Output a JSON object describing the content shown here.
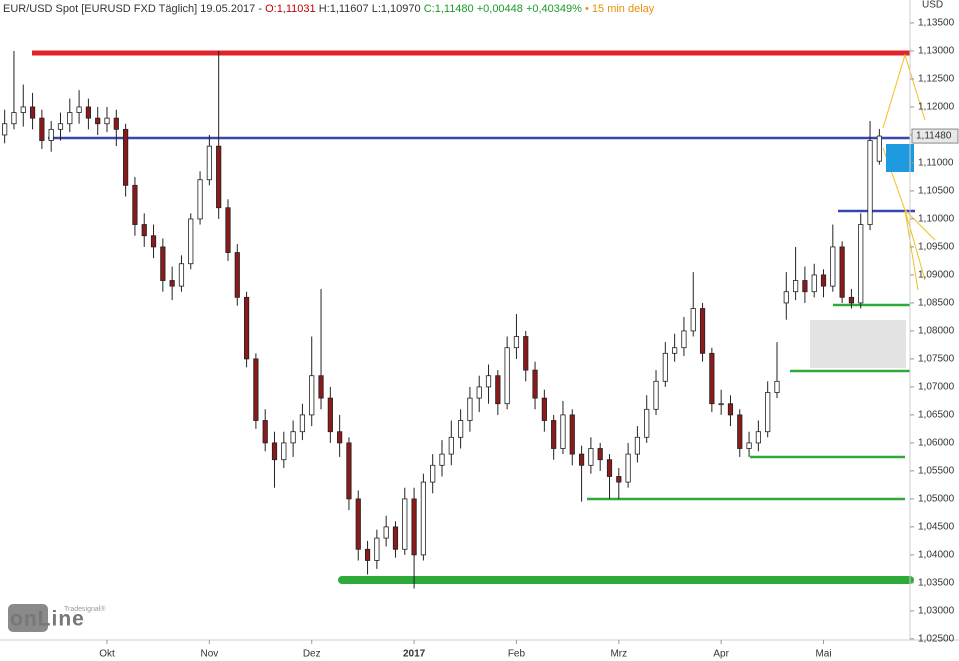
{
  "chart_data": {
    "type": "candlestick",
    "title": "EUR/USD Spot [EURUSD FXD Täglich] 19.05.2017 -",
    "open_text": "O:1,11031",
    "high_low_text": "H:1,11607 L:1,10970",
    "change_text": "C:1,11480 +0,00448 +0,40349%",
    "delay_text": "• 15 min delay",
    "y_axis_label": "USD",
    "last_price": {
      "value": 1.1148,
      "label": "1,11480"
    },
    "watermark": {
      "brand": "Tradesignal®",
      "name": "onLine"
    },
    "up_color": "#ffffff",
    "down_color": "#8b1a1a",
    "ylim": [
      1.0248,
      1.1391
    ],
    "yticks": [
      {
        "value": 1.025,
        "label": "1,02500"
      },
      {
        "value": 1.03,
        "label": "1,03000"
      },
      {
        "value": 1.035,
        "label": "1,03500"
      },
      {
        "value": 1.04,
        "label": "1,04000"
      },
      {
        "value": 1.045,
        "label": "1,04500"
      },
      {
        "value": 1.05,
        "label": "1,05000"
      },
      {
        "value": 1.055,
        "label": "1,05500"
      },
      {
        "value": 1.06,
        "label": "1,06000"
      },
      {
        "value": 1.065,
        "label": "1,06500"
      },
      {
        "value": 1.07,
        "label": "1,07000"
      },
      {
        "value": 1.075,
        "label": "1,07500"
      },
      {
        "value": 1.08,
        "label": "1,08000"
      },
      {
        "value": 1.085,
        "label": "1,08500"
      },
      {
        "value": 1.09,
        "label": "1,09000"
      },
      {
        "value": 1.095,
        "label": "1,09500"
      },
      {
        "value": 1.1,
        "label": "1,10000"
      },
      {
        "value": 1.105,
        "label": "1,10500"
      },
      {
        "value": 1.11,
        "label": "1,11000"
      },
      {
        "value": 1.115,
        "label": "1,11500"
      },
      {
        "value": 1.12,
        "label": "1,12000"
      },
      {
        "value": 1.125,
        "label": "1,12500"
      },
      {
        "value": 1.13,
        "label": "1,13000"
      },
      {
        "value": 1.135,
        "label": "1,13500"
      }
    ],
    "categories": [
      null,
      null,
      null,
      null,
      null,
      null,
      null,
      null,
      null,
      null,
      null,
      "Okt",
      null,
      null,
      null,
      null,
      null,
      null,
      null,
      null,
      null,
      null,
      "Nov",
      null,
      null,
      null,
      null,
      null,
      null,
      null,
      null,
      null,
      null,
      "Dez",
      null,
      null,
      null,
      null,
      null,
      null,
      null,
      null,
      null,
      null,
      "2017",
      null,
      null,
      null,
      null,
      null,
      null,
      null,
      null,
      null,
      null,
      "Feb",
      null,
      null,
      null,
      null,
      null,
      null,
      null,
      null,
      null,
      null,
      "Mrz",
      null,
      null,
      null,
      null,
      null,
      null,
      null,
      null,
      null,
      null,
      "Apr",
      null,
      null,
      null,
      null,
      null,
      null,
      null,
      null,
      null,
      null,
      "Mai",
      null,
      null,
      null,
      null,
      null,
      null
    ],
    "ohlc": [
      [
        1.115,
        1.1195,
        1.1135,
        1.117
      ],
      [
        1.117,
        1.13,
        1.116,
        1.119
      ],
      [
        1.119,
        1.124,
        1.1165,
        1.12
      ],
      [
        1.12,
        1.1225,
        1.116,
        1.118
      ],
      [
        1.118,
        1.1195,
        1.1125,
        1.114
      ],
      [
        1.114,
        1.1175,
        1.112,
        1.116
      ],
      [
        1.116,
        1.119,
        1.114,
        1.117
      ],
      [
        1.117,
        1.1215,
        1.1155,
        1.119
      ],
      [
        1.119,
        1.123,
        1.117,
        1.12
      ],
      [
        1.12,
        1.1215,
        1.116,
        1.118
      ],
      [
        1.118,
        1.12,
        1.115,
        1.117
      ],
      [
        1.117,
        1.12,
        1.1155,
        1.118
      ],
      [
        1.118,
        1.1195,
        1.113,
        1.116
      ],
      [
        1.116,
        1.117,
        1.104,
        1.106
      ],
      [
        1.106,
        1.1075,
        1.097,
        1.099
      ],
      [
        1.099,
        1.101,
        1.095,
        1.097
      ],
      [
        1.097,
        1.099,
        1.093,
        1.095
      ],
      [
        1.095,
        1.0965,
        1.087,
        1.089
      ],
      [
        1.089,
        1.0915,
        1.0855,
        1.088
      ],
      [
        1.088,
        1.0935,
        1.087,
        1.092
      ],
      [
        1.092,
        1.101,
        1.091,
        1.1
      ],
      [
        1.1,
        1.1085,
        1.099,
        1.107
      ],
      [
        1.107,
        1.115,
        1.106,
        1.113
      ],
      [
        1.113,
        1.13,
        1.1,
        1.102
      ],
      [
        1.102,
        1.1035,
        1.0925,
        1.094
      ],
      [
        1.094,
        1.0955,
        1.0845,
        1.086
      ],
      [
        1.086,
        1.087,
        1.0735,
        1.075
      ],
      [
        1.075,
        1.076,
        1.0625,
        1.064
      ],
      [
        1.064,
        1.066,
        1.0585,
        1.06
      ],
      [
        1.06,
        1.062,
        1.052,
        1.057
      ],
      [
        1.057,
        1.062,
        1.0555,
        1.06
      ],
      [
        1.06,
        1.064,
        1.0575,
        1.062
      ],
      [
        1.062,
        1.067,
        1.0605,
        1.065
      ],
      [
        1.065,
        1.079,
        1.063,
        1.072
      ],
      [
        1.072,
        1.0875,
        1.066,
        1.068
      ],
      [
        1.068,
        1.07,
        1.06,
        1.062
      ],
      [
        1.062,
        1.065,
        1.0575,
        1.06
      ],
      [
        1.06,
        1.061,
        1.048,
        1.05
      ],
      [
        1.05,
        1.0515,
        1.039,
        1.041
      ],
      [
        1.041,
        1.0425,
        1.0365,
        1.039
      ],
      [
        1.039,
        1.0445,
        1.0375,
        1.043
      ],
      [
        1.043,
        1.047,
        1.0415,
        1.045
      ],
      [
        1.045,
        1.046,
        1.0395,
        1.041
      ],
      [
        1.041,
        1.052,
        1.04,
        1.05
      ],
      [
        1.05,
        1.052,
        1.034,
        1.04
      ],
      [
        1.04,
        1.0545,
        1.039,
        1.053
      ],
      [
        1.053,
        1.058,
        1.051,
        1.056
      ],
      [
        1.056,
        1.0605,
        1.054,
        1.058
      ],
      [
        1.058,
        1.064,
        1.056,
        1.061
      ],
      [
        1.061,
        1.066,
        1.059,
        1.064
      ],
      [
        1.064,
        1.07,
        1.062,
        1.068
      ],
      [
        1.068,
        1.072,
        1.0655,
        1.07
      ],
      [
        1.07,
        1.074,
        1.067,
        1.072
      ],
      [
        1.072,
        1.073,
        1.065,
        1.067
      ],
      [
        1.067,
        1.079,
        1.066,
        1.077
      ],
      [
        1.077,
        1.083,
        1.075,
        1.079
      ],
      [
        1.079,
        1.08,
        1.071,
        1.073
      ],
      [
        1.073,
        1.0745,
        1.066,
        1.068
      ],
      [
        1.068,
        1.0695,
        1.062,
        1.064
      ],
      [
        1.064,
        1.065,
        1.057,
        1.059
      ],
      [
        1.059,
        1.0675,
        1.058,
        1.065
      ],
      [
        1.065,
        1.066,
        1.056,
        1.058
      ],
      [
        1.058,
        1.0595,
        1.0495,
        1.056
      ],
      [
        1.056,
        1.061,
        1.0545,
        1.059
      ],
      [
        1.059,
        1.06,
        1.055,
        1.057
      ],
      [
        1.057,
        1.058,
        1.05,
        1.054
      ],
      [
        1.054,
        1.0555,
        1.05,
        1.053
      ],
      [
        1.053,
        1.06,
        1.052,
        1.058
      ],
      [
        1.058,
        1.063,
        1.0565,
        1.061
      ],
      [
        1.061,
        1.0685,
        1.06,
        1.066
      ],
      [
        1.066,
        1.073,
        1.065,
        1.071
      ],
      [
        1.071,
        1.078,
        1.07,
        1.076
      ],
      [
        1.076,
        1.0795,
        1.0745,
        1.077
      ],
      [
        1.077,
        1.0825,
        1.0755,
        1.08
      ],
      [
        1.08,
        1.0905,
        1.079,
        1.084
      ],
      [
        1.084,
        1.085,
        1.0745,
        1.076
      ],
      [
        1.076,
        1.077,
        1.0655,
        1.067
      ],
      [
        1.067,
        1.0695,
        1.065,
        1.067
      ],
      [
        1.067,
        1.0685,
        1.063,
        1.065
      ],
      [
        1.065,
        1.066,
        1.0575,
        1.059
      ],
      [
        1.059,
        1.062,
        1.0575,
        1.06
      ],
      [
        1.06,
        1.064,
        1.0585,
        1.062
      ],
      [
        1.062,
        1.071,
        1.061,
        1.069
      ],
      [
        1.069,
        1.078,
        1.068,
        1.071
      ],
      [
        1.085,
        1.0905,
        1.082,
        1.087
      ],
      [
        1.087,
        1.095,
        1.0855,
        1.089
      ],
      [
        1.089,
        1.0915,
        1.085,
        1.087
      ],
      [
        1.087,
        1.092,
        1.086,
        1.09
      ],
      [
        1.09,
        1.091,
        1.086,
        1.088
      ],
      [
        1.088,
        1.099,
        1.087,
        1.095
      ],
      [
        1.095,
        1.096,
        1.085,
        1.086
      ],
      [
        1.086,
        1.0875,
        1.084,
        1.085
      ],
      [
        1.085,
        1.101,
        1.084,
        1.099
      ],
      [
        1.099,
        1.1175,
        1.098,
        1.114
      ],
      [
        1.11031,
        1.11607,
        1.1097,
        1.1148
      ]
    ]
  }
}
